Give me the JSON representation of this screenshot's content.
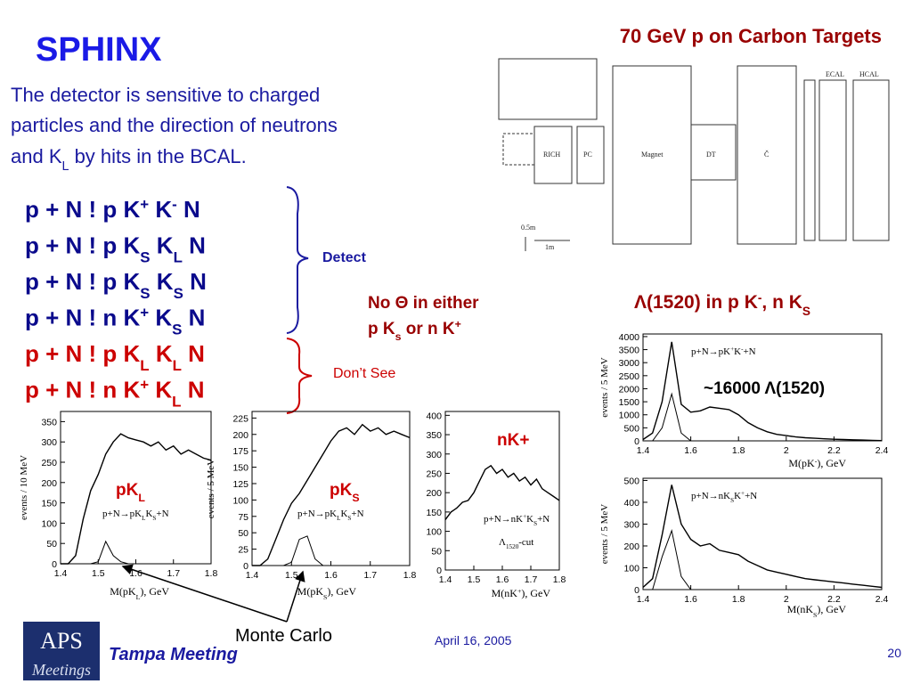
{
  "header": {
    "title": "SPHINX",
    "subtitle": "70 GeV p on Carbon Targets"
  },
  "intro": [
    "The detector is sensitive to charged",
    " particles and the direction of  neutrons",
    [
      "and K",
      "L",
      " by hits in the BCAL."
    ]
  ],
  "reactions": [
    [
      "p + N ! p K",
      "+",
      " K",
      "-",
      " N"
    ],
    [
      "p + N ! p K",
      "S",
      " K",
      "L",
      " N"
    ],
    [
      "p + N ! p K",
      "S",
      " K",
      "S",
      " N"
    ],
    [
      "p + N ! n K",
      "+",
      " K",
      "S",
      " N"
    ],
    [
      "p + N ! p K",
      "L",
      " K",
      "L",
      " N"
    ],
    [
      "p + N ! n K",
      "+",
      " K",
      "L",
      " N"
    ]
  ],
  "detect": "Detect",
  "dont_see": "Don’t See",
  "no_theta": [
    "No Θ  in  either",
    [
      "p K",
      "s",
      " or  n K",
      "+"
    ]
  ],
  "lambda_title": [
    "Λ(1520) in p K",
    "-",
    ", n K",
    "S"
  ],
  "lambda_count": "~16000 Λ(1520)",
  "detector": {
    "labels": [
      "ECAL",
      "HCAL",
      "RICH",
      "PC",
      "Magnet",
      "DT",
      "Č",
      "0.5m",
      "1m"
    ]
  },
  "plots": [
    {
      "ylabel": "events / 10 MeV",
      "xlabel": [
        "M(pK",
        "L",
        "),  GeV"
      ],
      "label": [
        "pK",
        "L"
      ],
      "reaction": [
        "p+N→pK",
        "L",
        "K",
        "S",
        "+N"
      ],
      "xlim": [
        1.4,
        1.8
      ],
      "ylim": [
        0,
        375
      ],
      "xticks": [
        1.4,
        1.5,
        1.6,
        1.7,
        1.8
      ],
      "yticks": [
        0,
        50,
        100,
        150,
        200,
        250,
        300,
        350
      ],
      "x": [
        1.4,
        1.42,
        1.44,
        1.46,
        1.48,
        1.5,
        1.52,
        1.54,
        1.56,
        1.58,
        1.6,
        1.62,
        1.64,
        1.66,
        1.68,
        1.7,
        1.72,
        1.74,
        1.76,
        1.78,
        1.8
      ],
      "series": [
        {
          "color": "#000000",
          "values": [
            0,
            0,
            20,
            110,
            180,
            220,
            270,
            300,
            320,
            310,
            305,
            300,
            290,
            300,
            280,
            290,
            270,
            280,
            270,
            260,
            255
          ]
        },
        {
          "color": "#000000",
          "values": [
            0,
            0,
            0,
            0,
            0,
            5,
            55,
            20,
            5,
            0,
            0,
            0,
            0,
            0,
            0,
            0,
            0,
            0,
            0,
            0,
            0
          ]
        }
      ]
    },
    {
      "ylabel": "events / 5 MeV",
      "xlabel": [
        "M(pK",
        "S",
        "),  GeV"
      ],
      "label": [
        "pK",
        "S"
      ],
      "reaction": [
        "p+N→pK",
        "L",
        "K",
        "S",
        "+N"
      ],
      "xlim": [
        1.4,
        1.8
      ],
      "ylim": [
        0,
        235
      ],
      "xticks": [
        1.4,
        1.5,
        1.6,
        1.7,
        1.8
      ],
      "yticks": [
        0,
        25,
        50,
        75,
        100,
        125,
        150,
        175,
        200,
        225
      ],
      "x": [
        1.4,
        1.42,
        1.44,
        1.46,
        1.48,
        1.5,
        1.52,
        1.54,
        1.56,
        1.58,
        1.6,
        1.62,
        1.64,
        1.66,
        1.68,
        1.7,
        1.72,
        1.74,
        1.76,
        1.78,
        1.8
      ],
      "series": [
        {
          "color": "#000000",
          "values": [
            0,
            0,
            10,
            40,
            70,
            95,
            110,
            130,
            150,
            170,
            190,
            205,
            210,
            200,
            215,
            205,
            210,
            200,
            205,
            200,
            195
          ]
        },
        {
          "color": "#000000",
          "values": [
            0,
            0,
            0,
            0,
            0,
            5,
            40,
            45,
            10,
            0,
            0,
            0,
            0,
            0,
            0,
            0,
            0,
            0,
            0,
            0,
            0
          ]
        }
      ]
    },
    {
      "xlabel": [
        "M(nK",
        "+",
        "),  GeV"
      ],
      "label": [
        "nK+"
      ],
      "reaction": [
        "p+N→nK",
        "+",
        "K",
        "S",
        "+N"
      ],
      "cut": [
        "Λ",
        "1520",
        "-cut"
      ],
      "xlim": [
        1.4,
        1.8
      ],
      "ylim": [
        0,
        410
      ],
      "xticks": [
        1.4,
        1.5,
        1.6,
        1.7,
        1.8
      ],
      "yticks": [
        0,
        50,
        100,
        150,
        200,
        250,
        300,
        350,
        400
      ],
      "x": [
        1.4,
        1.42,
        1.44,
        1.46,
        1.48,
        1.5,
        1.52,
        1.54,
        1.56,
        1.58,
        1.6,
        1.62,
        1.64,
        1.66,
        1.68,
        1.7,
        1.72,
        1.74,
        1.76,
        1.78,
        1.8
      ],
      "series": [
        {
          "color": "#000000",
          "values": [
            130,
            150,
            160,
            175,
            180,
            200,
            230,
            260,
            270,
            250,
            260,
            240,
            250,
            230,
            240,
            220,
            235,
            210,
            200,
            190,
            180
          ]
        }
      ]
    },
    {
      "ylabel": "events / 5 MeV",
      "xlabel": [
        "M(pK",
        "-",
        "),  GeV"
      ],
      "reaction": [
        "p+N→pK",
        "+",
        "K",
        "-",
        "+N"
      ],
      "xlim": [
        1.4,
        2.4
      ],
      "ylim": [
        0,
        4100
      ],
      "xticks": [
        1.4,
        1.6,
        1.8,
        2,
        2.2,
        2.4
      ],
      "yticks": [
        0,
        500,
        1000,
        1500,
        2000,
        2500,
        3000,
        3500,
        4000
      ],
      "x": [
        1.4,
        1.44,
        1.48,
        1.52,
        1.56,
        1.6,
        1.64,
        1.68,
        1.72,
        1.76,
        1.8,
        1.84,
        1.88,
        1.92,
        1.96,
        2,
        2.04,
        2.08,
        2.12,
        2.16,
        2.2,
        2.24,
        2.28,
        2.32,
        2.36,
        2.4
      ],
      "series": [
        {
          "color": "#000000",
          "values": [
            50,
            300,
            1500,
            3800,
            1400,
            1100,
            1150,
            1300,
            1250,
            1200,
            1000,
            700,
            500,
            350,
            250,
            200,
            150,
            120,
            100,
            80,
            60,
            50,
            40,
            30,
            20,
            10
          ]
        },
        {
          "color": "#000000",
          "values": [
            0,
            0,
            500,
            1800,
            300,
            0,
            0,
            0,
            0,
            0,
            0,
            0,
            0,
            0,
            0,
            0,
            0,
            0,
            0,
            0,
            0,
            0,
            0,
            0,
            0,
            0
          ]
        }
      ]
    },
    {
      "ylabel": "events / 5 MeV",
      "xlabel": [
        "M(nK",
        "S",
        "),  GeV"
      ],
      "reaction": [
        "p+N→nK",
        "S",
        "K",
        "+",
        "+N"
      ],
      "xlim": [
        1.4,
        2.4
      ],
      "ylim": [
        0,
        510
      ],
      "xticks": [
        1.4,
        1.6,
        1.8,
        2,
        2.2,
        2.4
      ],
      "yticks": [
        0,
        100,
        200,
        300,
        400,
        500
      ],
      "x": [
        1.4,
        1.44,
        1.48,
        1.52,
        1.56,
        1.6,
        1.64,
        1.68,
        1.72,
        1.76,
        1.8,
        1.84,
        1.88,
        1.92,
        1.96,
        2,
        2.04,
        2.08,
        2.12,
        2.16,
        2.2,
        2.24,
        2.28,
        2.32,
        2.36,
        2.4
      ],
      "series": [
        {
          "color": "#000000",
          "values": [
            10,
            50,
            250,
            480,
            300,
            230,
            200,
            210,
            180,
            170,
            160,
            130,
            110,
            90,
            80,
            70,
            60,
            50,
            45,
            40,
            35,
            30,
            25,
            20,
            15,
            10
          ]
        },
        {
          "color": "#000000",
          "values": [
            0,
            0,
            150,
            270,
            60,
            0,
            0,
            0,
            0,
            0,
            0,
            0,
            0,
            0,
            0,
            0,
            0,
            0,
            0,
            0,
            0,
            0,
            0,
            0,
            0,
            0
          ]
        }
      ]
    }
  ],
  "monte_carlo": "Monte Carlo",
  "footer": {
    "logo": [
      "APS",
      "Meetings"
    ],
    "meeting": "Tampa Meeting",
    "date": "April 16, 2005",
    "page": "20"
  }
}
